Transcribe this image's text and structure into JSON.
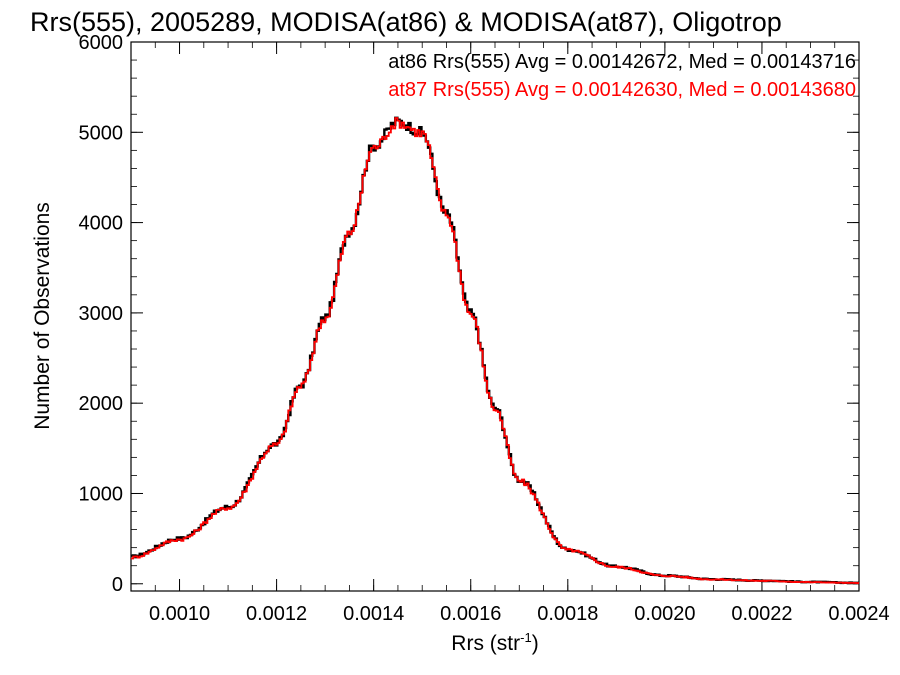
{
  "chart_data": {
    "type": "line",
    "title": "Rrs(555), 2005289, MODISA(at86) & MODISA(at87), Oligotrop",
    "xlabel": "Rrs (str",
    "xlabel_superscript": "-1",
    "xlabel_close": ")",
    "ylabel": "Number of Observations",
    "xlim": [
      0.0009,
      0.0024
    ],
    "ylim": [
      -80,
      6000
    ],
    "xticks": [
      0.001,
      0.0012,
      0.0014,
      0.0016,
      0.0018,
      0.002,
      0.0022,
      0.0024
    ],
    "xtick_labels": [
      "0.0010",
      "0.0012",
      "0.0014",
      "0.0016",
      "0.0018",
      "0.0020",
      "0.0022",
      "0.0024"
    ],
    "yticks": [
      0,
      1000,
      2000,
      3000,
      4000,
      5000,
      6000
    ],
    "ytick_labels": [
      "0",
      "1000",
      "2000",
      "3000",
      "4000",
      "5000",
      "6000"
    ],
    "annotations": [
      {
        "text": "at86 Rrs(555) Avg = 0.00142672, Med = 0.00143716",
        "color": "#000000"
      },
      {
        "text": "at87 Rrs(555) Avg = 0.00142630, Med = 0.00143680",
        "color": "#ff0000"
      }
    ],
    "series": [
      {
        "color": "#000000",
        "x": [
          0.0009,
          0.001,
          0.0011,
          0.0012,
          0.00125,
          0.0013,
          0.00135,
          0.0014,
          0.00145,
          0.0015,
          0.00155,
          0.0016,
          0.00165,
          0.0017,
          0.0018,
          0.0019,
          0.002,
          0.0021,
          0.0022,
          0.0023,
          0.0024
        ],
        "y": [
          300,
          500,
          850,
          1550,
          2200,
          2950,
          3900,
          4850,
          5120,
          5000,
          4100,
          3000,
          1950,
          1150,
          380,
          190,
          90,
          50,
          35,
          20,
          10
        ]
      },
      {
        "color": "#ff0000",
        "x": [
          0.0009,
          0.001,
          0.0011,
          0.0012,
          0.00125,
          0.0013,
          0.00135,
          0.0014,
          0.00145,
          0.0015,
          0.00155,
          0.0016,
          0.00165,
          0.0017,
          0.0018,
          0.0019,
          0.002,
          0.0021,
          0.0022,
          0.0023,
          0.0024
        ],
        "y": [
          290,
          490,
          840,
          1540,
          2190,
          2940,
          3880,
          4830,
          5110,
          4990,
          4090,
          2990,
          1940,
          1140,
          375,
          185,
          88,
          48,
          33,
          18,
          8
        ]
      }
    ]
  }
}
